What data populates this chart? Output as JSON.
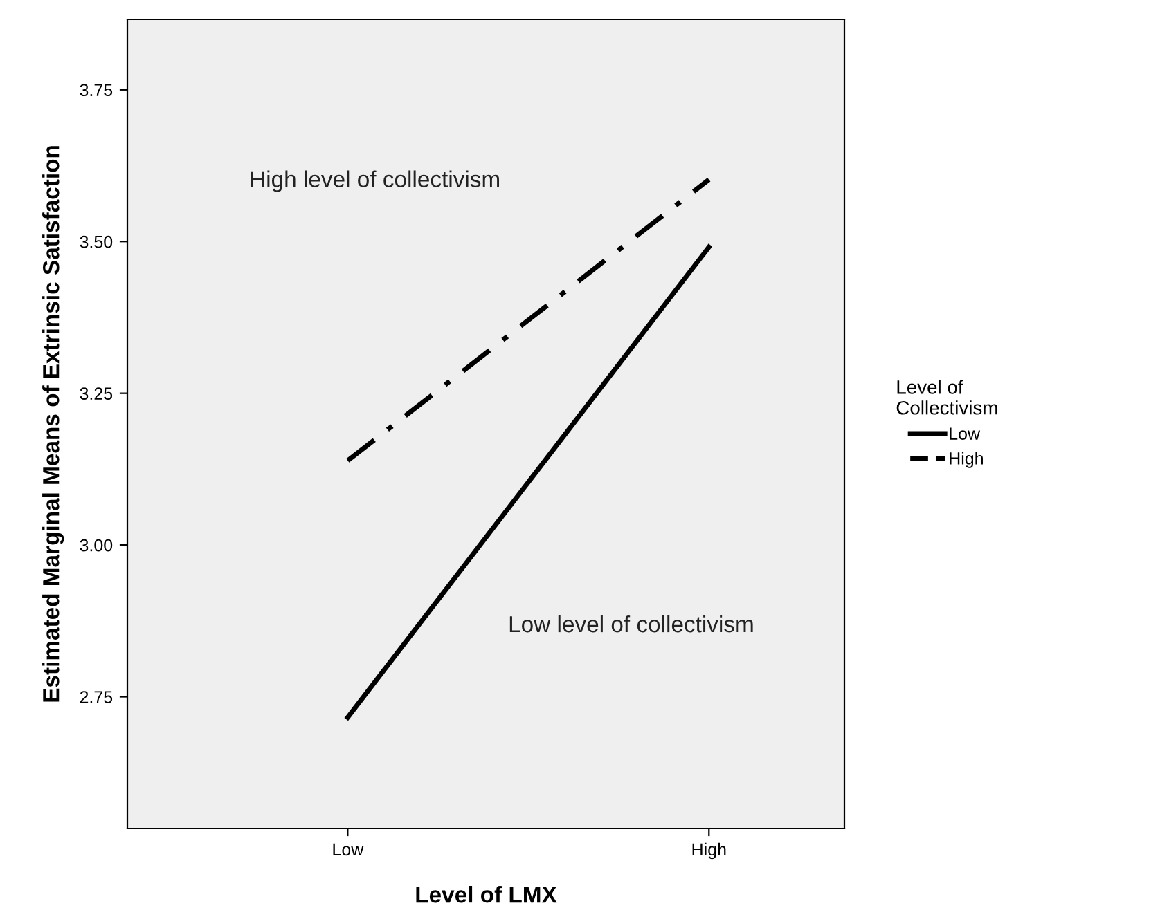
{
  "chart_data": {
    "type": "line",
    "xlabel": "Level of LMX",
    "ylabel": "Estimated Marginal Means of Extrinsic Satisfaction",
    "legend_title": "Level of\nCollectivism",
    "categories": [
      "Low",
      "High"
    ],
    "series": [
      {
        "name": "Low",
        "color": "#000000",
        "line_style": "solid",
        "values": [
          2.716,
          3.491
        ]
      },
      {
        "name": "High",
        "color": "#000000",
        "line_style": "dashdot",
        "values": [
          3.139,
          3.602
        ]
      }
    ],
    "annotations": [
      "High level of collectivism",
      "Low level of collectivism"
    ],
    "ylim": [
      2.533,
      3.866
    ],
    "yticks": [
      2.75,
      {
        "value": 3,
        "label": "3.00"
      },
      3.25,
      {
        "value": 3.5,
        "label": "3.50"
      },
      3.75
    ],
    "grid": false,
    "legend": "right",
    "marker": "none"
  }
}
